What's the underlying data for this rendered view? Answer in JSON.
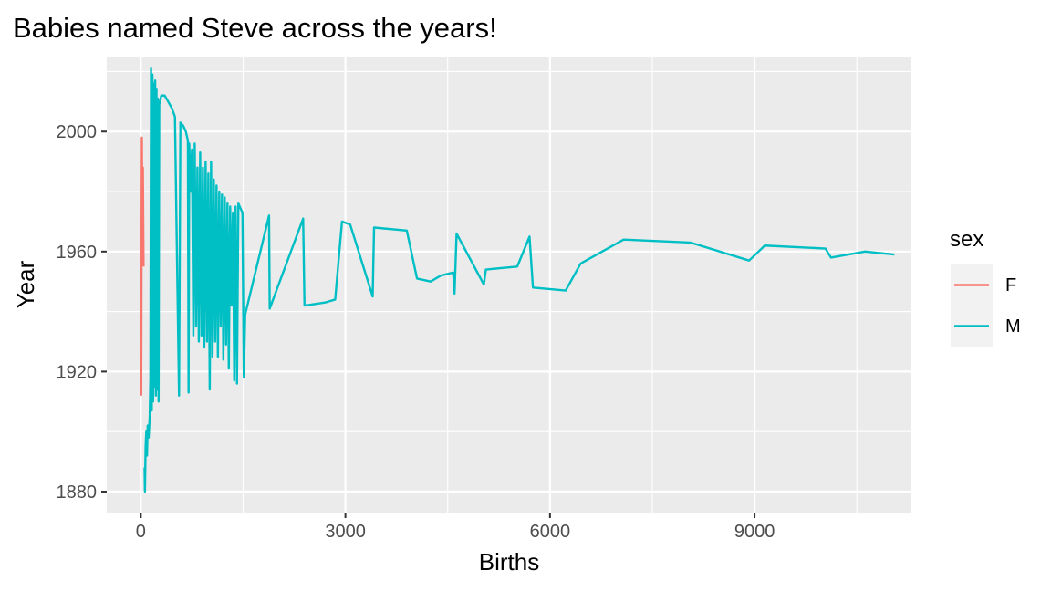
{
  "chart_data": {
    "type": "line",
    "title": "Babies named Steve across the years!",
    "xlabel": "Births",
    "ylabel": "Year",
    "xlim": [
      -500,
      11300
    ],
    "ylim": [
      1873,
      2025
    ],
    "x_ticks": [
      0,
      3000,
      6000,
      9000
    ],
    "x_tick_labels": [
      "0",
      "3000",
      "6000",
      "9000"
    ],
    "y_ticks": [
      1880,
      1920,
      1960,
      2000
    ],
    "y_tick_labels": [
      "1880",
      "1920",
      "1960",
      "2000"
    ],
    "grid": true,
    "legend": {
      "title": "sex",
      "placement": "right"
    },
    "series": [
      {
        "name": "F",
        "color": "#F8766D",
        "points": [
          [
            5,
            1912
          ],
          [
            8,
            1935
          ],
          [
            10,
            1960
          ],
          [
            15,
            1998
          ],
          [
            20,
            1975
          ],
          [
            25,
            1958
          ],
          [
            30,
            1988
          ],
          [
            35,
            1970
          ],
          [
            40,
            1955
          ]
        ]
      },
      {
        "name": "M",
        "color": "#00BFC4",
        "points": [
          [
            60,
            1880
          ],
          [
            55,
            1888
          ],
          [
            70,
            1895
          ],
          [
            80,
            1900
          ],
          [
            90,
            1892
          ],
          [
            100,
            1902
          ],
          [
            115,
            1898
          ],
          [
            130,
            1905
          ],
          [
            140,
            1918
          ],
          [
            150,
            2021
          ],
          [
            160,
            1907
          ],
          [
            170,
            2019
          ],
          [
            180,
            1910
          ],
          [
            190,
            2016
          ],
          [
            200,
            1915
          ],
          [
            210,
            2017
          ],
          [
            220,
            1912
          ],
          [
            230,
            2014
          ],
          [
            240,
            1914
          ],
          [
            250,
            2011
          ],
          [
            260,
            1910
          ],
          [
            270,
            2009
          ],
          [
            300,
            2012
          ],
          [
            350,
            2012
          ],
          [
            400,
            2010
          ],
          [
            450,
            2008
          ],
          [
            500,
            2005
          ],
          [
            560,
            1912
          ],
          [
            580,
            2003
          ],
          [
            620,
            2002
          ],
          [
            660,
            2000
          ],
          [
            690,
            1997
          ],
          [
            700,
            1913
          ],
          [
            710,
            1996
          ],
          [
            730,
            1980
          ],
          [
            750,
            1994
          ],
          [
            770,
            1932
          ],
          [
            790,
            1996
          ],
          [
            810,
            1935
          ],
          [
            830,
            1988
          ],
          [
            850,
            1930
          ],
          [
            870,
            1993
          ],
          [
            890,
            1932
          ],
          [
            910,
            1988
          ],
          [
            930,
            1928
          ],
          [
            950,
            1990
          ],
          [
            970,
            1930
          ],
          [
            990,
            1986
          ],
          [
            1010,
            1914
          ],
          [
            1030,
            1990
          ],
          [
            1050,
            1925
          ],
          [
            1070,
            1984
          ],
          [
            1090,
            1930
          ],
          [
            1110,
            1982
          ],
          [
            1130,
            1925
          ],
          [
            1150,
            1980
          ],
          [
            1170,
            1935
          ],
          [
            1190,
            1979
          ],
          [
            1210,
            1924
          ],
          [
            1230,
            1978
          ],
          [
            1250,
            1929
          ],
          [
            1270,
            1976
          ],
          [
            1290,
            1921
          ],
          [
            1310,
            1975
          ],
          [
            1330,
            1942
          ],
          [
            1350,
            1973
          ],
          [
            1370,
            1917
          ],
          [
            1390,
            1975
          ],
          [
            1410,
            1916
          ],
          [
            1430,
            1976
          ],
          [
            1450,
            1975
          ],
          [
            1470,
            1974
          ],
          [
            1490,
            1973
          ],
          [
            1510,
            1918
          ],
          [
            1530,
            1939
          ],
          [
            1880,
            1972
          ],
          [
            1890,
            1941
          ],
          [
            2380,
            1971
          ],
          [
            2400,
            1942
          ],
          [
            2700,
            1943
          ],
          [
            2850,
            1944
          ],
          [
            2950,
            1970
          ],
          [
            3070,
            1969
          ],
          [
            3400,
            1945
          ],
          [
            3420,
            1968
          ],
          [
            3900,
            1967
          ],
          [
            4050,
            1951
          ],
          [
            4250,
            1950
          ],
          [
            4400,
            1952
          ],
          [
            4580,
            1953
          ],
          [
            4600,
            1946
          ],
          [
            4630,
            1966
          ],
          [
            5030,
            1949
          ],
          [
            5060,
            1954
          ],
          [
            5520,
            1955
          ],
          [
            5700,
            1965
          ],
          [
            5750,
            1948
          ],
          [
            6230,
            1947
          ],
          [
            6450,
            1956
          ],
          [
            7080,
            1964
          ],
          [
            8060,
            1963
          ],
          [
            8920,
            1957
          ],
          [
            9150,
            1962
          ],
          [
            10040,
            1961
          ],
          [
            10120,
            1958
          ],
          [
            10620,
            1960
          ],
          [
            11050,
            1959
          ]
        ]
      }
    ]
  }
}
